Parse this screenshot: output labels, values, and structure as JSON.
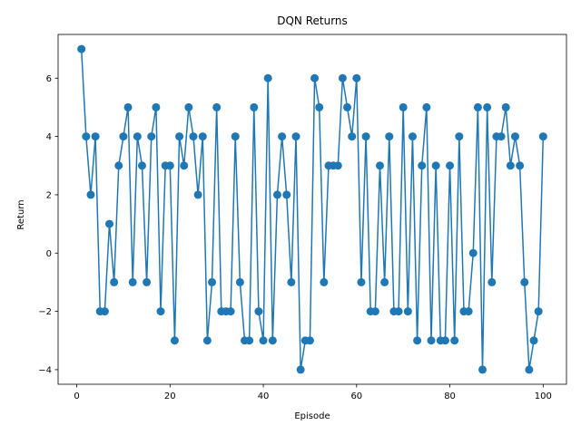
{
  "chart_data": {
    "type": "line",
    "title": "DQN Returns",
    "xlabel": "Episode",
    "ylabel": "Return",
    "xlim": [
      -4,
      105
    ],
    "ylim": [
      -4.5,
      7.5
    ],
    "xticks": [
      0,
      20,
      40,
      60,
      80,
      100
    ],
    "yticks": [
      -4,
      -2,
      0,
      2,
      4,
      6
    ],
    "grid": false,
    "legend": "none",
    "marker": "circle",
    "color": "#1f77b4",
    "series": [
      {
        "x": [
          1,
          2,
          3,
          4,
          5,
          6,
          7,
          8,
          9,
          10,
          11,
          12,
          13,
          14,
          15,
          16,
          17,
          18,
          19,
          20,
          21,
          22,
          23,
          24,
          25,
          26,
          27,
          28,
          29,
          30,
          31,
          32,
          33,
          34,
          35,
          36,
          37,
          38,
          39,
          40,
          41,
          42,
          43,
          44,
          45,
          46,
          47,
          48,
          49,
          50,
          51,
          52,
          53,
          54,
          55,
          56,
          57,
          58,
          59,
          60,
          61,
          62,
          63,
          64,
          65,
          66,
          67,
          68,
          69,
          70,
          71,
          72,
          73,
          74,
          75,
          76,
          77,
          78,
          79,
          80,
          81,
          82,
          83,
          84,
          85,
          86,
          87,
          88,
          89,
          90,
          91,
          92,
          93,
          94,
          95,
          96,
          97,
          98,
          99,
          100
        ],
        "values": [
          7,
          4,
          2,
          4,
          -2,
          -2,
          1,
          -1,
          3,
          4,
          5,
          -1,
          4,
          3,
          -1,
          4,
          5,
          -2,
          3,
          3,
          -3,
          4,
          3,
          5,
          4,
          2,
          4,
          -3,
          -1,
          5,
          -2,
          -2,
          -2,
          4,
          -1,
          -3,
          -3,
          5,
          -2,
          -3,
          6,
          -3,
          2,
          4,
          2,
          -1,
          4,
          -4,
          -3,
          -3,
          6,
          5,
          -1,
          3,
          3,
          3,
          6,
          5,
          4,
          6,
          -1,
          4,
          -2,
          -2,
          3,
          -1,
          4,
          -2,
          -2,
          5,
          -2,
          4,
          -3,
          3,
          5,
          -3,
          3,
          -3,
          -3,
          3,
          -3,
          4,
          -2,
          -2,
          0,
          5,
          -4,
          5,
          -1,
          4,
          4,
          5,
          3,
          4,
          3,
          -1,
          -4,
          -3,
          -2,
          4
        ]
      }
    ]
  }
}
